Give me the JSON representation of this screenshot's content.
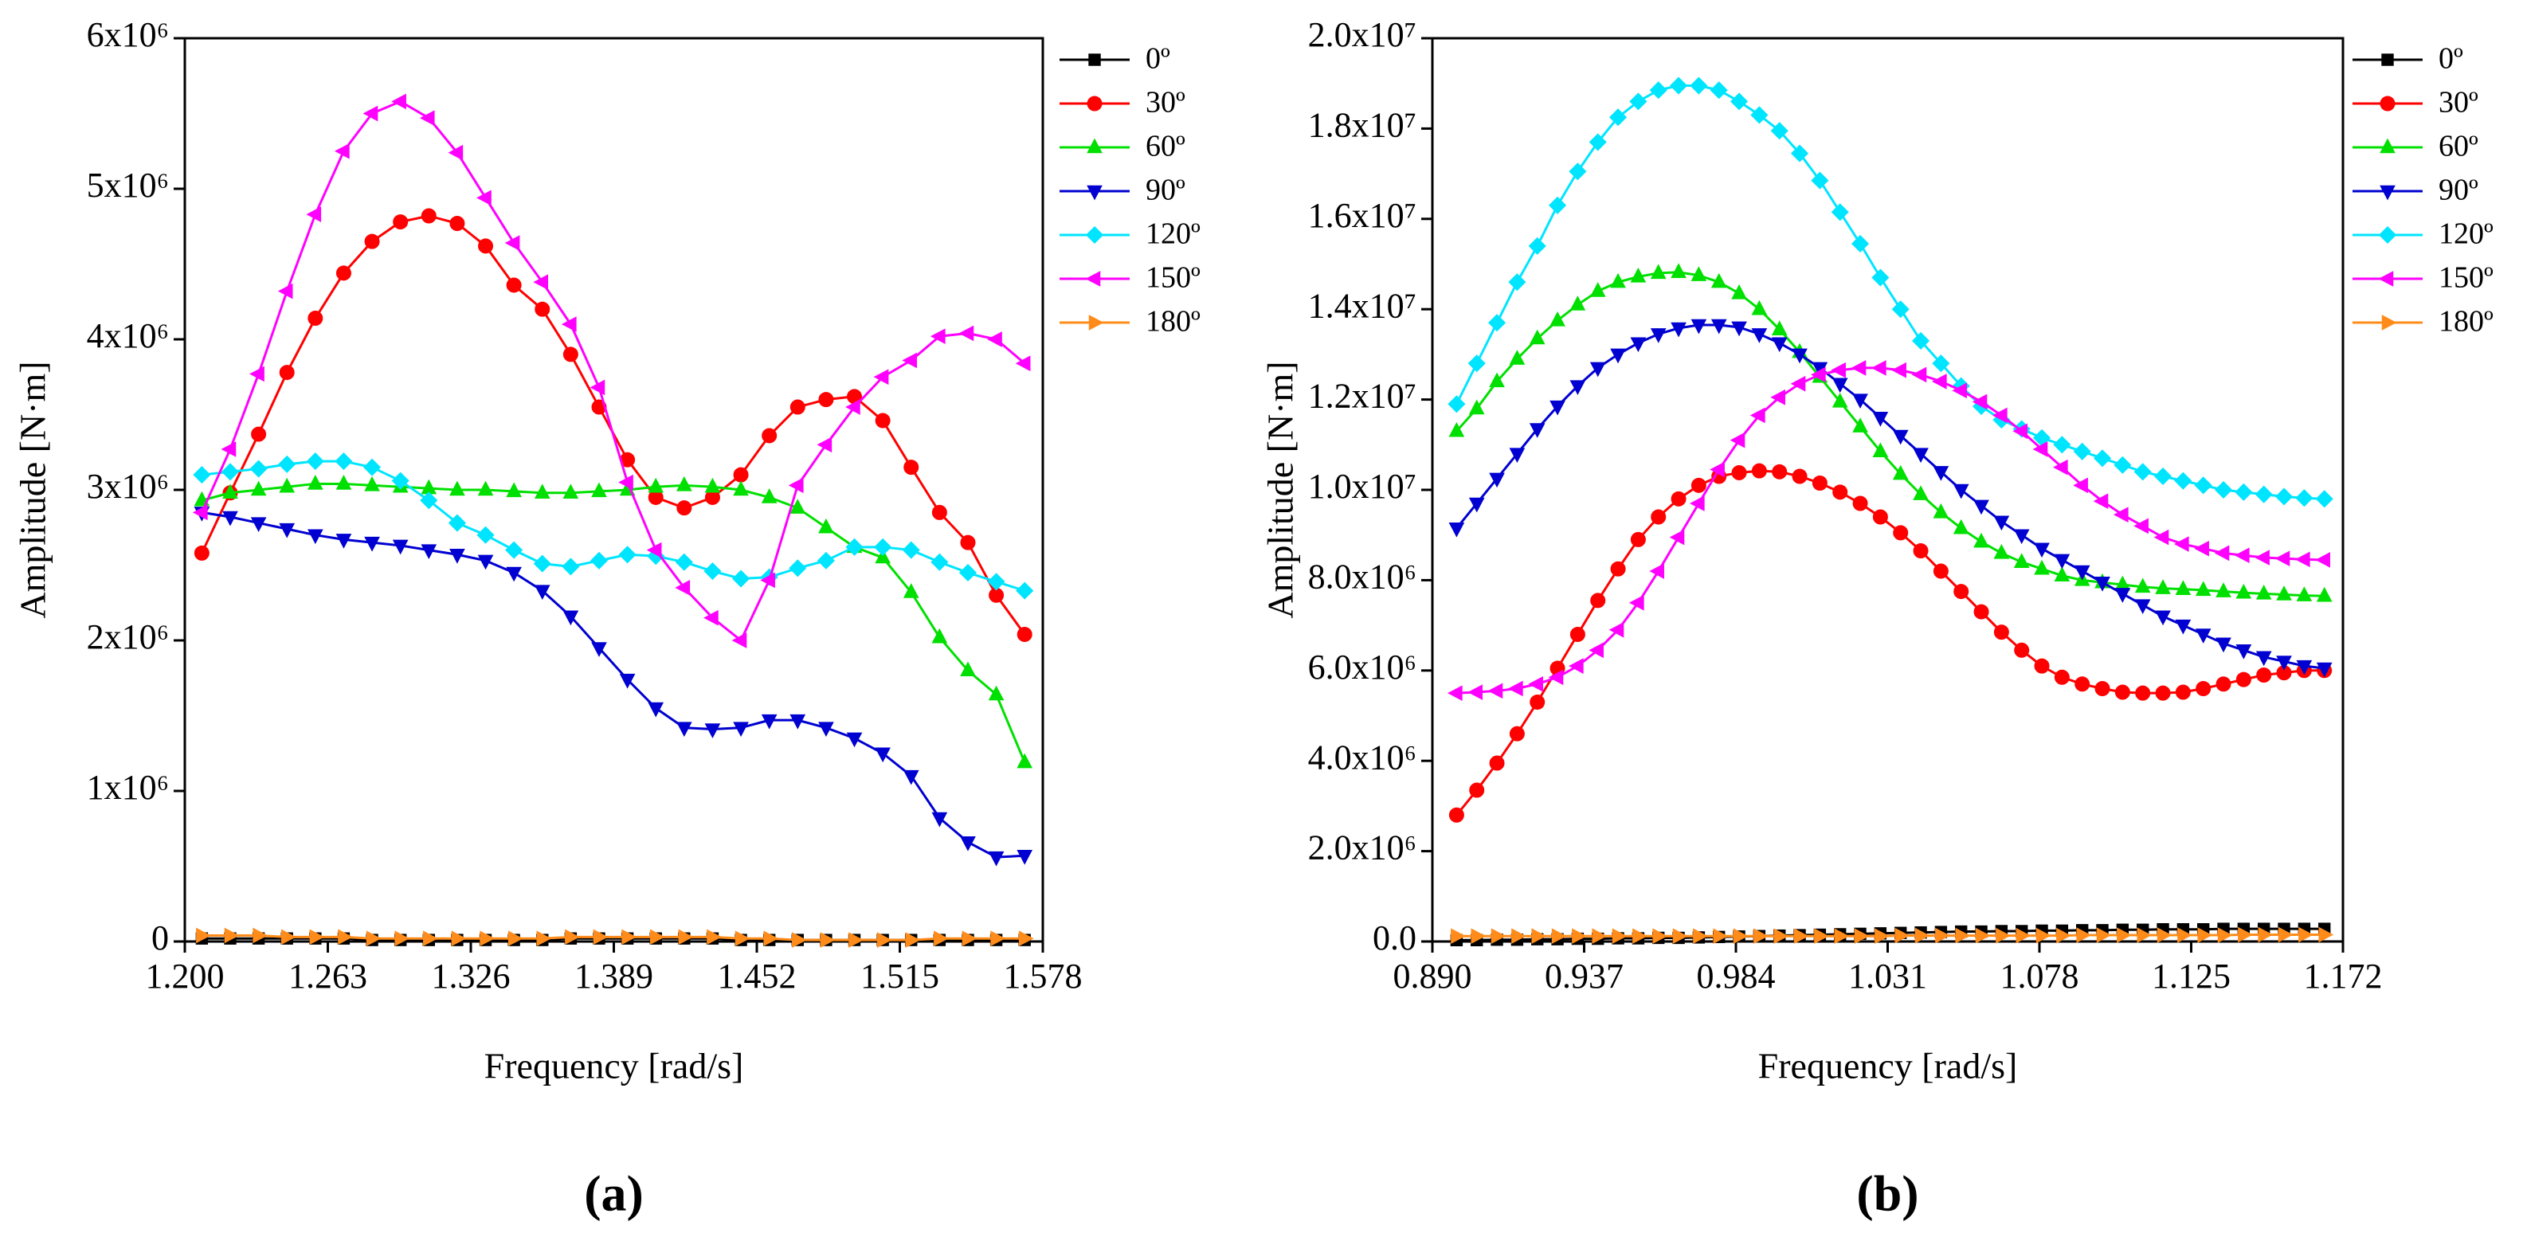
{
  "chart_data": [
    {
      "type": "line",
      "label": "(a)",
      "xlabel": "Frequency [rad/s]",
      "ylabel": "Amplitude [N·m]",
      "xlim": [
        1.2,
        1.578
      ],
      "xticks": [
        {
          "value": 1.2,
          "label": "1.200"
        },
        1.263,
        1.326,
        1.389,
        1.452,
        1.515,
        1.578
      ],
      "ylim": [
        0,
        6000000.0
      ],
      "yticks": [
        0,
        {
          "value": 1000000.0,
          "label": "1x10⁶"
        },
        {
          "value": 2000000.0,
          "label": "2x10⁶"
        },
        {
          "value": 3000000.0,
          "label": "3x10⁶"
        },
        {
          "value": 4000000.0,
          "label": "4x10⁶"
        },
        {
          "value": 5000000.0,
          "label": "5x10⁶"
        },
        {
          "value": 6000000.0,
          "label": "6x10⁶"
        }
      ],
      "legend": "outside-upper-right",
      "x": [
        1.2075,
        1.22,
        1.2325,
        1.245,
        1.2575,
        1.27,
        1.2825,
        1.295,
        1.3075,
        1.32,
        1.3325,
        1.345,
        1.3575,
        1.37,
        1.3825,
        1.395,
        1.4075,
        1.42,
        1.4325,
        1.445,
        1.4575,
        1.47,
        1.4825,
        1.495,
        1.5075,
        1.52,
        1.5325,
        1.545,
        1.5575,
        1.57
      ],
      "series": [
        {
          "name": "0º",
          "color": "#000000",
          "marker": "square",
          "values": [
            20000.0,
            20000.0,
            20000.0,
            20000.0,
            20000.0,
            20000.0,
            10000.0,
            10000.0,
            10000.0,
            10000.0,
            10000.0,
            10000.0,
            10000.0,
            20000.0,
            20000.0,
            20000.0,
            20000.0,
            20000.0,
            20000.0,
            10000.0,
            10000.0,
            10000.0,
            10000.0,
            10000.0,
            10000.0,
            10000.0,
            10000.0,
            10000.0,
            10000.0,
            10000.0
          ]
        },
        {
          "name": "30º",
          "color": "#ff0000",
          "marker": "circle",
          "values": [
            2580000.0,
            2980000.0,
            3370000.0,
            3780000.0,
            4140000.0,
            4440000.0,
            4650000.0,
            4780000.0,
            4820000.0,
            4770000.0,
            4620000.0,
            4360000.0,
            4200000.0,
            3900000.0,
            3550000.0,
            3200000.0,
            2950000.0,
            2880000.0,
            2950000.0,
            3100000.0,
            3360000.0,
            3550000.0,
            3600000.0,
            3620000.0,
            3460000.0,
            3150000.0,
            2850000.0,
            2650000.0,
            2300000.0,
            2040000.0
          ]
        },
        {
          "name": "60º",
          "color": "#00e000",
          "marker": "triangle-up",
          "values": [
            2930000.0,
            2980000.0,
            3000000.0,
            3020000.0,
            3040000.0,
            3040000.0,
            3030000.0,
            3020000.0,
            3010000.0,
            3000000.0,
            3000000.0,
            2990000.0,
            2980000.0,
            2980000.0,
            2990000.0,
            3000000.0,
            3020000.0,
            3030000.0,
            3020000.0,
            3000000.0,
            2950000.0,
            2880000.0,
            2750000.0,
            2620000.0,
            2550000.0,
            2320000.0,
            2020000.0,
            1800000.0,
            1640000.0,
            1190000.0
          ]
        },
        {
          "name": "90º",
          "color": "#0000d0",
          "marker": "triangle-down",
          "values": [
            2850000.0,
            2820000.0,
            2780000.0,
            2740000.0,
            2700000.0,
            2670000.0,
            2650000.0,
            2630000.0,
            2600000.0,
            2570000.0,
            2530000.0,
            2450000.0,
            2330000.0,
            2160000.0,
            1950000.0,
            1740000.0,
            1550000.0,
            1420000.0,
            1410000.0,
            1420000.0,
            1470000.0,
            1470000.0,
            1420000.0,
            1350000.0,
            1250000.0,
            1100000.0,
            820000.0,
            660000.0,
            560000.0,
            570000.0
          ]
        },
        {
          "name": "120º",
          "color": "#00e5ff",
          "marker": "diamond",
          "values": [
            3100000.0,
            3120000.0,
            3140000.0,
            3170000.0,
            3190000.0,
            3190000.0,
            3150000.0,
            3060000.0,
            2930000.0,
            2780000.0,
            2700000.0,
            2600000.0,
            2510000.0,
            2490000.0,
            2530000.0,
            2570000.0,
            2560000.0,
            2520000.0,
            2460000.0,
            2410000.0,
            2420000.0,
            2480000.0,
            2530000.0,
            2620000.0,
            2620000.0,
            2600000.0,
            2520000.0,
            2450000.0,
            2390000.0,
            2330000.0
          ]
        },
        {
          "name": "150º",
          "color": "#ff00ff",
          "marker": "triangle-left",
          "values": [
            2850000.0,
            3270000.0,
            3770000.0,
            4320000.0,
            4830000.0,
            5250000.0,
            5500000.0,
            5580000.0,
            5470000.0,
            5240000.0,
            4940000.0,
            4640000.0,
            4380000.0,
            4100000.0,
            3680000.0,
            3050000.0,
            2600000.0,
            2350000.0,
            2150000.0,
            2000000.0,
            2400000.0,
            3030000.0,
            3300000.0,
            3550000.0,
            3750000.0,
            3860000.0,
            4020000.0,
            4040000.0,
            4000000.0,
            3840000.0
          ]
        },
        {
          "name": "180º",
          "color": "#ff8c1a",
          "marker": "triangle-right",
          "values": [
            40000.0,
            40000.0,
            40000.0,
            30000.0,
            30000.0,
            30000.0,
            20000.0,
            20000.0,
            20000.0,
            20000.0,
            20000.0,
            20000.0,
            20000.0,
            30000.0,
            30000.0,
            30000.0,
            30000.0,
            30000.0,
            30000.0,
            20000.0,
            20000.0,
            10000.0,
            10000.0,
            10000.0,
            10000.0,
            10000.0,
            20000.0,
            20000.0,
            20000.0,
            20000.0
          ]
        }
      ]
    },
    {
      "type": "line",
      "label": "(b)",
      "xlabel": "Frequency [rad/s]",
      "ylabel": "Amplitude [N·m]",
      "xlim": [
        0.89,
        1.172
      ],
      "xticks": [
        {
          "value": 0.89,
          "label": "0.890"
        },
        0.937,
        0.984,
        1.031,
        1.078,
        1.125,
        1.172
      ],
      "ylim": [
        0,
        20000000.0
      ],
      "yticks": [
        {
          "value": 0,
          "label": "0.0"
        },
        {
          "value": 2000000.0,
          "label": "2.0x10⁶"
        },
        {
          "value": 4000000.0,
          "label": "4.0x10⁶"
        },
        {
          "value": 6000000.0,
          "label": "6.0x10⁶"
        },
        {
          "value": 8000000.0,
          "label": "8.0x10⁶"
        },
        {
          "value": 10000000.0,
          "label": "1.0x10⁷"
        },
        {
          "value": 12000000.0,
          "label": "1.2x10⁷"
        },
        {
          "value": 14000000.0,
          "label": "1.4x10⁷"
        },
        {
          "value": 16000000.0,
          "label": "1.6x10⁷"
        },
        {
          "value": 18000000.0,
          "label": "1.8x10⁷"
        },
        {
          "value": 20000000.0,
          "label": "2.0x10⁷"
        }
      ],
      "legend": "outside-upper-right",
      "x": [
        0.8975,
        0.90375,
        0.91,
        0.91625,
        0.9225,
        0.92875,
        0.935,
        0.94125,
        0.9475,
        0.95375,
        0.96,
        0.96625,
        0.9725,
        0.97875,
        0.985,
        0.99125,
        0.9975,
        1.00375,
        1.01,
        1.01625,
        1.0225,
        1.02875,
        1.035,
        1.04125,
        1.0475,
        1.05375,
        1.06,
        1.06625,
        1.0725,
        1.07875,
        1.085,
        1.09125,
        1.0975,
        1.10375,
        1.11,
        1.11625,
        1.1225,
        1.12875,
        1.135,
        1.14125,
        1.1475,
        1.15375,
        1.16,
        1.16625
      ],
      "series": [
        {
          "name": "0º",
          "color": "#000000",
          "marker": "square",
          "values": [
            30000.0,
            30000.0,
            40000.0,
            40000.0,
            50000.0,
            50000.0,
            60000.0,
            60000.0,
            70000.0,
            70000.0,
            80000.0,
            80000.0,
            90000.0,
            100000.0,
            110000.0,
            120000.0,
            130000.0,
            140000.0,
            150000.0,
            160000.0,
            170000.0,
            180000.0,
            190000.0,
            200000.0,
            210000.0,
            220000.0,
            220000.0,
            230000.0,
            230000.0,
            240000.0,
            240000.0,
            250000.0,
            250000.0,
            260000.0,
            260000.0,
            270000.0,
            270000.0,
            270000.0,
            280000.0,
            280000.0,
            280000.0,
            280000.0,
            280000.0,
            280000.0
          ]
        },
        {
          "name": "30º",
          "color": "#ff0000",
          "marker": "circle",
          "values": [
            2800000.0,
            3350000.0,
            3950000.0,
            4600000.0,
            5300000.0,
            6050000.0,
            6800000.0,
            7550000.0,
            8250000.0,
            8900000.0,
            9400000.0,
            9800000.0,
            10100000.0,
            10300000.0,
            10380000.0,
            10420000.0,
            10400000.0,
            10300000.0,
            10150000.0,
            9950000.0,
            9700000.0,
            9400000.0,
            9050000.0,
            8650000.0,
            8200000.0,
            7750000.0,
            7300000.0,
            6850000.0,
            6450000.0,
            6100000.0,
            5850000.0,
            5700000.0,
            5600000.0,
            5520000.0,
            5500000.0,
            5500000.0,
            5520000.0,
            5600000.0,
            5700000.0,
            5800000.0,
            5900000.0,
            5950000.0,
            6000000.0,
            6000000.0
          ]
        },
        {
          "name": "60º",
          "color": "#00e000",
          "marker": "triangle-up",
          "values": [
            11300000.0,
            11800000.0,
            12400000.0,
            12900000.0,
            13350000.0,
            13750000.0,
            14100000.0,
            14400000.0,
            14600000.0,
            14720000.0,
            14800000.0,
            14820000.0,
            14750000.0,
            14600000.0,
            14350000.0,
            14000000.0,
            13550000.0,
            13050000.0,
            12500000.0,
            11950000.0,
            11400000.0,
            10850000.0,
            10350000.0,
            9900000.0,
            9500000.0,
            9150000.0,
            8850000.0,
            8600000.0,
            8400000.0,
            8250000.0,
            8100000.0,
            8000000.0,
            7950000.0,
            7900000.0,
            7850000.0,
            7820000.0,
            7800000.0,
            7780000.0,
            7750000.0,
            7720000.0,
            7700000.0,
            7680000.0,
            7660000.0,
            7650000.0
          ]
        },
        {
          "name": "90º",
          "color": "#0000d0",
          "marker": "triangle-down",
          "values": [
            9150000.0,
            9700000.0,
            10250000.0,
            10800000.0,
            11350000.0,
            11850000.0,
            12300000.0,
            12700000.0,
            13000000.0,
            13250000.0,
            13450000.0,
            13580000.0,
            13650000.0,
            13650000.0,
            13600000.0,
            13450000.0,
            13250000.0,
            13000000.0,
            12700000.0,
            12350000.0,
            12000000.0,
            11600000.0,
            11200000.0,
            10800000.0,
            10400000.0,
            10000000.0,
            9650000.0,
            9300000.0,
            9000000.0,
            8700000.0,
            8450000.0,
            8200000.0,
            7950000.0,
            7700000.0,
            7450000.0,
            7200000.0,
            7000000.0,
            6800000.0,
            6600000.0,
            6450000.0,
            6300000.0,
            6200000.0,
            6100000.0,
            6050000.0
          ]
        },
        {
          "name": "120º",
          "color": "#00e5ff",
          "marker": "diamond",
          "values": [
            11900000.0,
            12800000.0,
            13700000.0,
            14600000.0,
            15400000.0,
            16300000.0,
            17050000.0,
            17700000.0,
            18250000.0,
            18600000.0,
            18850000.0,
            18950000.0,
            18950000.0,
            18850000.0,
            18600000.0,
            18300000.0,
            17950000.0,
            17450000.0,
            16850000.0,
            16150000.0,
            15450000.0,
            14700000.0,
            14000000.0,
            13300000.0,
            12800000.0,
            12300000.0,
            11850000.0,
            11550000.0,
            11350000.0,
            11150000.0,
            11000000.0,
            10850000.0,
            10700000.0,
            10550000.0,
            10400000.0,
            10300000.0,
            10200000.0,
            10100000.0,
            10000000.0,
            9950000.0,
            9900000.0,
            9850000.0,
            9820000.0,
            9800000.0
          ]
        },
        {
          "name": "150º",
          "color": "#ff00ff",
          "marker": "triangle-left",
          "values": [
            5500000.0,
            5520000.0,
            5550000.0,
            5600000.0,
            5700000.0,
            5850000.0,
            6100000.0,
            6450000.0,
            6900000.0,
            7500000.0,
            8200000.0,
            8950000.0,
            9700000.0,
            10450000.0,
            11100000.0,
            11650000.0,
            12050000.0,
            12350000.0,
            12550000.0,
            12650000.0,
            12700000.0,
            12700000.0,
            12650000.0,
            12550000.0,
            12400000.0,
            12200000.0,
            11950000.0,
            11650000.0,
            11300000.0,
            10900000.0,
            10500000.0,
            10100000.0,
            9750000.0,
            9450000.0,
            9200000.0,
            8950000.0,
            8800000.0,
            8700000.0,
            8600000.0,
            8550000.0,
            8500000.0,
            8480000.0,
            8460000.0,
            8450000.0
          ]
        },
        {
          "name": "180º",
          "color": "#ff8c1a",
          "marker": "triangle-right",
          "values": [
            120000.0,
            120000.0,
            120000.0,
            120000.0,
            120000.0,
            120000.0,
            120000.0,
            120000.0,
            120000.0,
            120000.0,
            120000.0,
            120000.0,
            120000.0,
            120000.0,
            120000.0,
            120000.0,
            120000.0,
            120000.0,
            120000.0,
            120000.0,
            120000.0,
            120000.0,
            130000.0,
            130000.0,
            130000.0,
            130000.0,
            130000.0,
            130000.0,
            130000.0,
            130000.0,
            130000.0,
            140000.0,
            140000.0,
            140000.0,
            140000.0,
            140000.0,
            140000.0,
            140000.0,
            140000.0,
            150000.0,
            150000.0,
            150000.0,
            150000.0,
            150000.0
          ]
        }
      ]
    }
  ]
}
